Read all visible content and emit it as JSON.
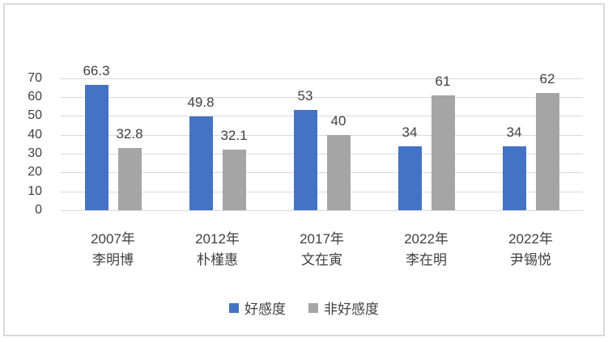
{
  "chart_data": {
    "type": "bar",
    "categories": [
      "2007年\n李明博",
      "2012年\n朴槿惠",
      "2017年\n文在寅",
      "2022年\n李在明",
      "2022年\n尹锡悦"
    ],
    "series": [
      {
        "name": "好感度",
        "color": "#4472C4",
        "values": [
          66.3,
          49.8,
          53,
          34,
          34
        ]
      },
      {
        "name": "非好感度",
        "color": "#A5A5A5",
        "values": [
          32.8,
          32.1,
          40,
          61,
          62
        ]
      }
    ],
    "y_ticks": [
      0,
      10,
      20,
      30,
      40,
      50,
      60,
      70
    ],
    "ylim": [
      0,
      70
    ],
    "grid": true,
    "data_labels": true,
    "legend_position": "bottom",
    "gridline_color": "#D9D9D9",
    "border_color": "#D9D9D9",
    "text_color": "#404040"
  }
}
